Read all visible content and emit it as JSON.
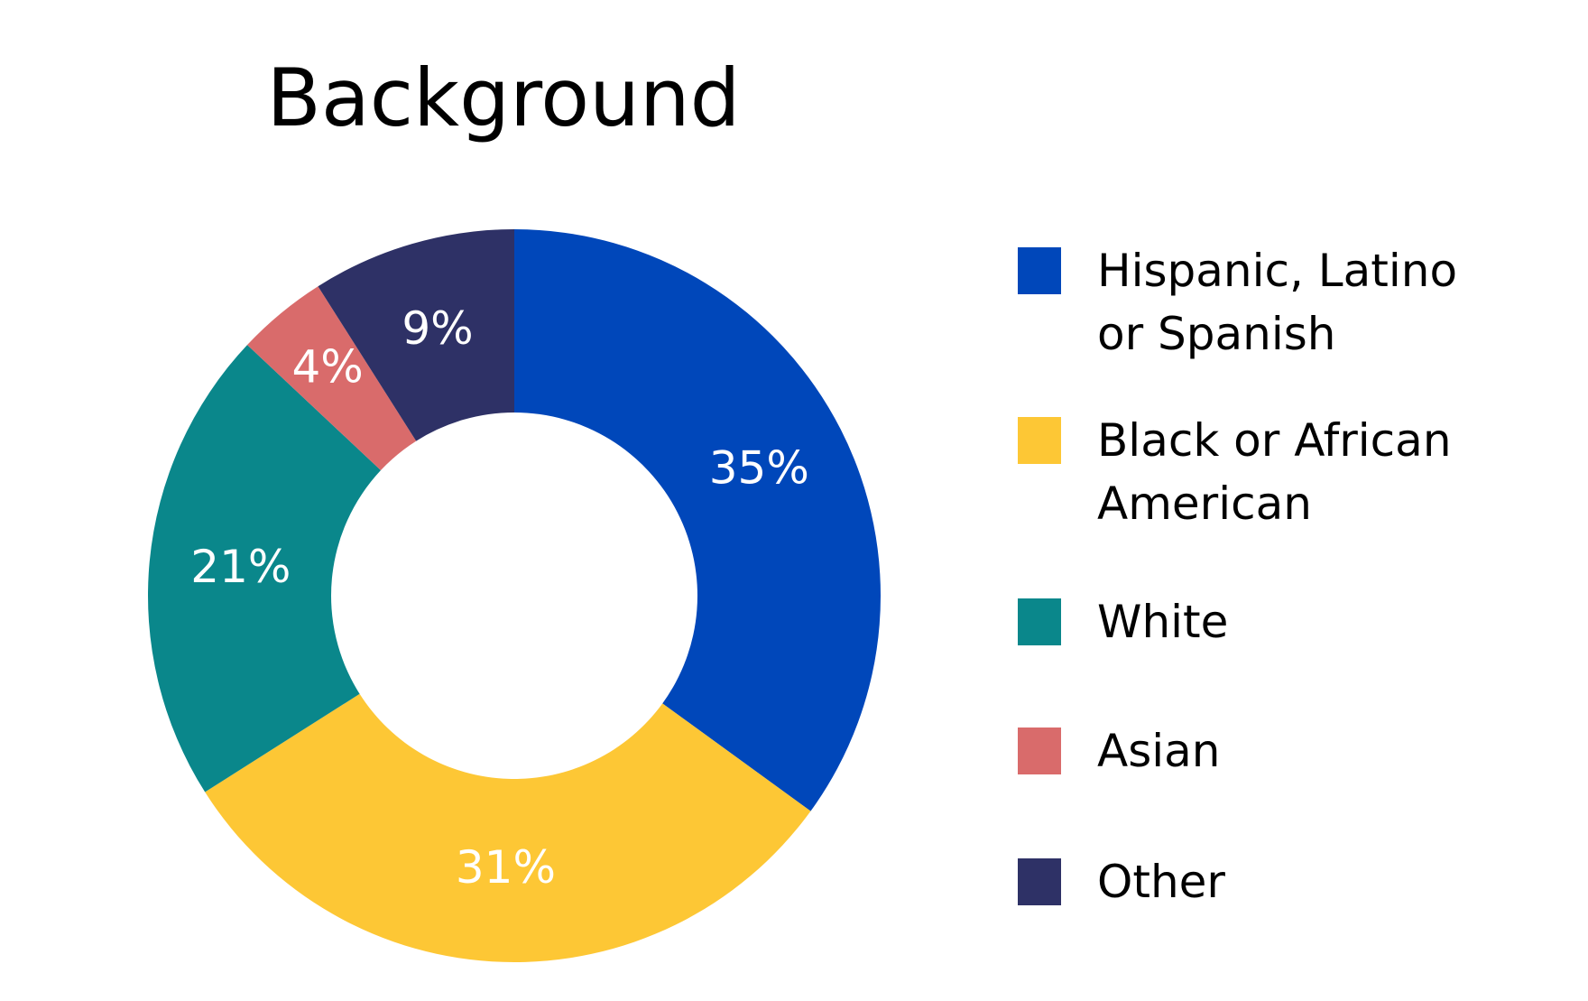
{
  "chart_data": {
    "type": "pie",
    "title": "Background",
    "categories": [
      "Hispanic, Latino or Spanish",
      "Black or African American",
      "White",
      "Asian",
      "Other"
    ],
    "values": [
      35,
      31,
      21,
      4,
      9
    ],
    "value_labels": [
      "35%",
      "31%",
      "21%",
      "4%",
      "9%"
    ],
    "colors": [
      "#0047ba",
      "#fdc735",
      "#0a878b",
      "#d96b6b",
      "#2e3166"
    ],
    "legend": "right"
  }
}
